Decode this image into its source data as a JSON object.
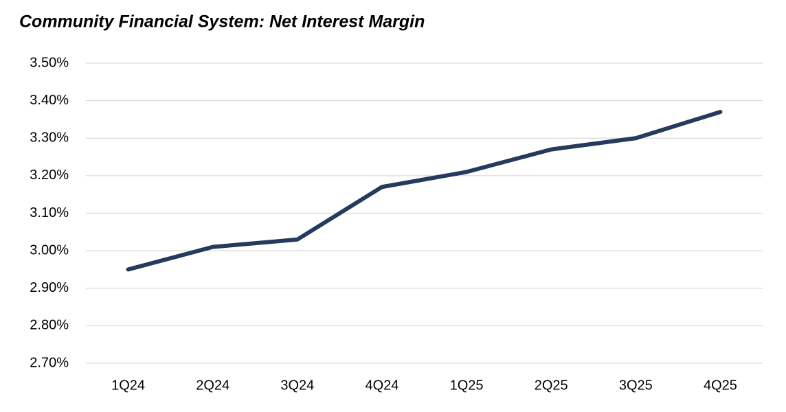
{
  "chart_data": {
    "type": "line",
    "title": "Community Financial System: Net Interest Margin",
    "categories": [
      "1Q24",
      "2Q24",
      "3Q24",
      "4Q24",
      "1Q25",
      "2Q25",
      "3Q25",
      "4Q25"
    ],
    "values": [
      2.95,
      3.01,
      3.03,
      3.17,
      3.21,
      3.27,
      3.3,
      3.37
    ],
    "color": "#243b5e",
    "ylim": [
      2.7,
      3.5
    ],
    "yticks": [
      {
        "value": 2.7,
        "label": "2.70%"
      },
      {
        "value": 2.8,
        "label": "2.80%"
      },
      {
        "value": 2.9,
        "label": "2.90%"
      },
      {
        "value": 3.0,
        "label": "3.00%"
      },
      {
        "value": 3.1,
        "label": "3.10%"
      },
      {
        "value": 3.2,
        "label": "3.20%"
      },
      {
        "value": 3.3,
        "label": "3.30%"
      },
      {
        "value": 3.4,
        "label": "3.40%"
      },
      {
        "value": 3.5,
        "label": "3.50%"
      }
    ],
    "grid": true
  }
}
